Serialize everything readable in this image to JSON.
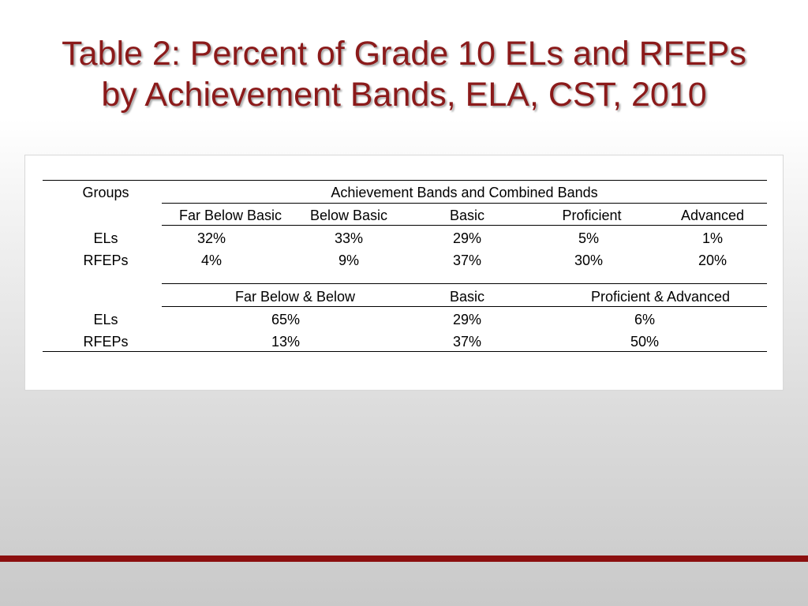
{
  "slide": {
    "title_line1": "Table 2: Percent of Grade 10 ELs and RFEPs",
    "title_line2": "by Achievement Bands, ELA, CST, 2010"
  },
  "table": {
    "groups_header": "Groups",
    "bands_header": "Achievement Bands and Combined Bands",
    "band_columns": [
      "Far Below Basic",
      "Below Basic",
      "Basic",
      "Proficient",
      "Advanced"
    ],
    "band_rows": [
      {
        "group": "ELs",
        "values": [
          "32%",
          "33%",
          "29%",
          "5%",
          "1%"
        ]
      },
      {
        "group": "RFEPs",
        "values": [
          "4%",
          "9%",
          "37%",
          "30%",
          "20%"
        ]
      }
    ],
    "combined_columns": [
      "Far Below & Below",
      "Basic",
      "Proficient & Advanced"
    ],
    "combined_rows": [
      {
        "group": "ELs",
        "values": [
          "65%",
          "29%",
          "6%"
        ]
      },
      {
        "group": "RFEPs",
        "values": [
          "13%",
          "37%",
          "50%"
        ]
      }
    ]
  }
}
